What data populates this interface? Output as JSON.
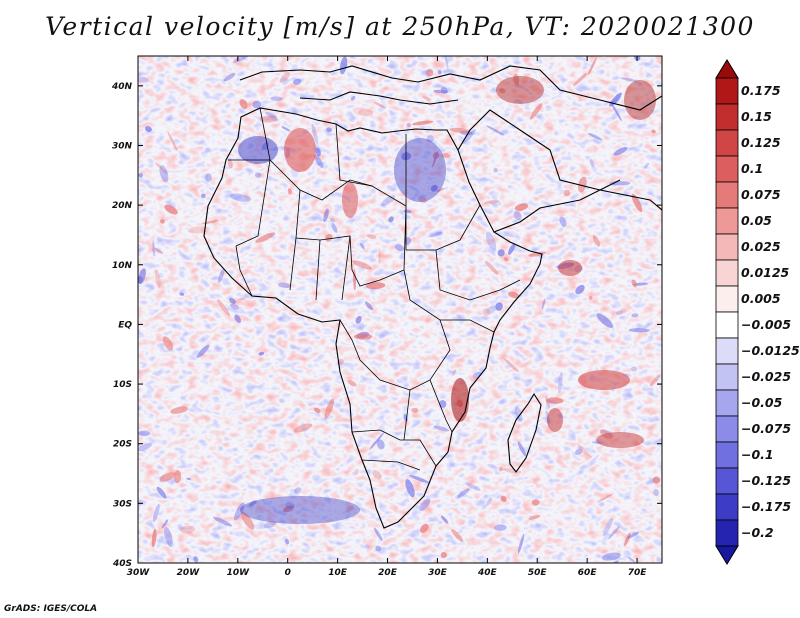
{
  "figure": {
    "title": "Vertical velocity [m/s] at 250hPa, VT: 2020021300",
    "credit": "GrADS: IGES/COLA"
  },
  "map": {
    "lon_range": [
      -30,
      75
    ],
    "lat_range": [
      -40,
      45
    ],
    "lat_ticks": [
      {
        "value": 40,
        "label": "40N"
      },
      {
        "value": 30,
        "label": "30N"
      },
      {
        "value": 20,
        "label": "20N"
      },
      {
        "value": 10,
        "label": "10N"
      },
      {
        "value": 0,
        "label": "EQ"
      },
      {
        "value": -10,
        "label": "10S"
      },
      {
        "value": -20,
        "label": "20S"
      },
      {
        "value": -30,
        "label": "30S"
      },
      {
        "value": -40,
        "label": "40S"
      }
    ],
    "lon_ticks": [
      {
        "value": -30,
        "label": "30W"
      },
      {
        "value": -20,
        "label": "20W"
      },
      {
        "value": -10,
        "label": "10W"
      },
      {
        "value": 0,
        "label": "0"
      },
      {
        "value": 10,
        "label": "10E"
      },
      {
        "value": 20,
        "label": "20E"
      },
      {
        "value": 30,
        "label": "30E"
      },
      {
        "value": 40,
        "label": "40E"
      },
      {
        "value": 50,
        "label": "50E"
      },
      {
        "value": 60,
        "label": "60E"
      },
      {
        "value": 70,
        "label": "70E"
      }
    ],
    "field_colors": {
      "negative": "#6f6fe8",
      "positive": "#e86f6f",
      "neutral": "#f4f4fb"
    },
    "coastline_color": "#000000"
  },
  "colorbar": {
    "levels": [
      {
        "label": "0.175",
        "color": "#b01818"
      },
      {
        "label": "0.15",
        "color": "#c22e2e"
      },
      {
        "label": "0.125",
        "color": "#d04646"
      },
      {
        "label": "0.1",
        "color": "#dc5e5e"
      },
      {
        "label": "0.075",
        "color": "#e57a7a"
      },
      {
        "label": "0.05",
        "color": "#ee9898"
      },
      {
        "label": "0.025",
        "color": "#f5b8b8"
      },
      {
        "label": "0.0125",
        "color": "#f9d4d4"
      },
      {
        "label": "0.005",
        "color": "#fdeeee"
      },
      {
        "label": "−0.005",
        "color": "#ffffff"
      },
      {
        "label": "−0.0125",
        "color": "#dcdcf9"
      },
      {
        "label": "−0.025",
        "color": "#c2c2f3"
      },
      {
        "label": "−0.05",
        "color": "#a6a6ee"
      },
      {
        "label": "−0.075",
        "color": "#8c8ce8"
      },
      {
        "label": "−0.1",
        "color": "#7070e0"
      },
      {
        "label": "−0.125",
        "color": "#5656d6"
      },
      {
        "label": "−0.175",
        "color": "#3c3cc6"
      },
      {
        "label": "−0.2",
        "color": "#2424b0"
      }
    ],
    "top_arrow_color": "#9a0a0a",
    "bottom_arrow_color": "#1818a0"
  }
}
